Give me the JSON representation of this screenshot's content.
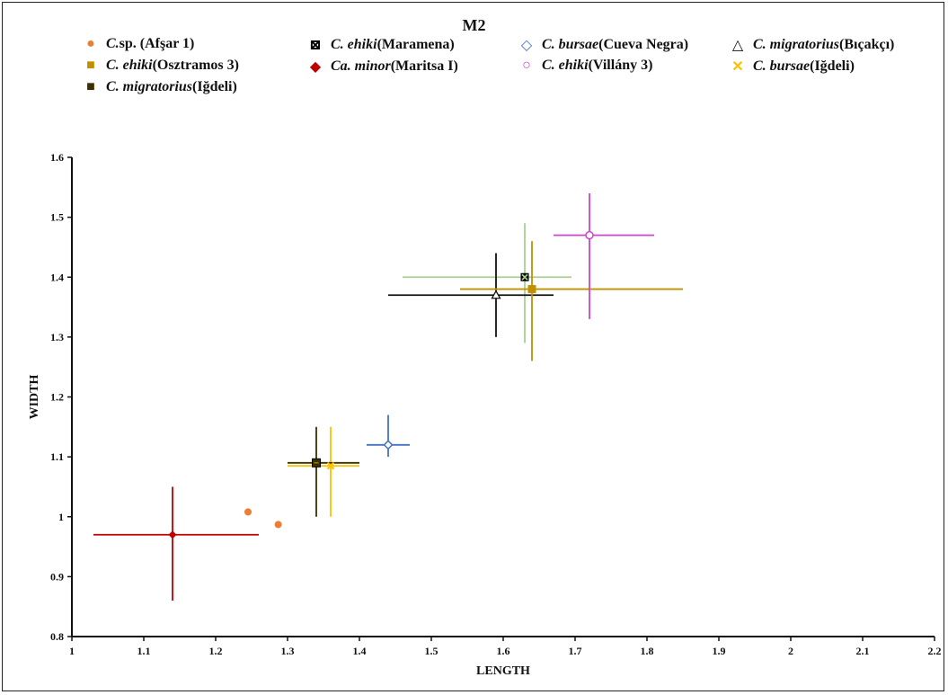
{
  "chart_data": {
    "type": "scatter",
    "title": "M2",
    "xlabel": "LENGTH",
    "ylabel": "WIDTH",
    "xlim": [
      1,
      2.2
    ],
    "ylim": [
      0.8,
      1.6
    ],
    "x_ticks": [
      "1",
      "1.1",
      "1.2",
      "1.3",
      "1.4",
      "1.5",
      "1.6",
      "1.7",
      "1.8",
      "1.9",
      "2",
      "2.1",
      "2.2"
    ],
    "y_ticks": [
      "0.8",
      "0.9",
      "1",
      "1.1",
      "1.2",
      "1.3",
      "1.4",
      "1.5",
      "1.6"
    ],
    "series": [
      {
        "name": "C. sp. (Afşar 1)",
        "genus": "C.",
        "rest": " sp. (Afşar 1)",
        "rest_italic": false,
        "marker": "circle",
        "color": "#ED7D31",
        "points": [
          {
            "x": 1.245,
            "y": 1.008
          },
          {
            "x": 1.287,
            "y": 0.987
          }
        ]
      },
      {
        "name": "C. ehiki (Maramena)",
        "genus": "C. ehiki",
        "rest": " (Maramena)",
        "marker": "square-x",
        "color": "#A9D18E",
        "points": [
          {
            "x": 1.63,
            "y": 1.4,
            "xerr": [
              1.46,
              1.695
            ],
            "yerr": [
              1.29,
              1.49
            ]
          }
        ]
      },
      {
        "name": "C. bursae (Cueva Negra)",
        "genus": "C. bursae",
        "rest": " (Cueva Negra)",
        "marker": "diamond-open",
        "color": "#4472C4",
        "points": [
          {
            "x": 1.44,
            "y": 1.12,
            "xerr": [
              1.41,
              1.47
            ],
            "yerr": [
              1.1,
              1.17
            ]
          }
        ]
      },
      {
        "name": "C. migratorius (Bıçakçı)",
        "genus": "C. migratorius",
        "rest": " (Bıçakçı)",
        "marker": "triangle-open",
        "color": "#111111",
        "points": [
          {
            "x": 1.59,
            "y": 1.37,
            "xerr": [
              1.44,
              1.67
            ],
            "yerr": [
              1.3,
              1.44
            ]
          }
        ]
      },
      {
        "name": "C. ehiki (Osztramos 3)",
        "genus": "C. ehiki",
        "rest": " (Osztramos 3)",
        "marker": "square",
        "color": "#BF9000",
        "points": [
          {
            "x": 1.64,
            "y": 1.38,
            "xerr": [
              1.54,
              1.85
            ],
            "yerr": [
              1.26,
              1.46
            ]
          }
        ]
      },
      {
        "name": "Ca. minor (Maritsa I)",
        "genus": "Ca. minor",
        "rest": " (Maritsa I)",
        "marker": "diamond",
        "color": "#C00000",
        "points": [
          {
            "x": 1.14,
            "y": 0.97,
            "xerr": [
              1.03,
              1.26
            ],
            "yerr": [
              0.86,
              1.05
            ]
          }
        ]
      },
      {
        "name": "C. ehiki (Villány 3)",
        "genus": "C. ehiki",
        "rest": " (Villány 3)",
        "marker": "circle-open",
        "color": "#CC44CC",
        "points": [
          {
            "x": 1.72,
            "y": 1.47,
            "xerr": [
              1.67,
              1.81
            ],
            "yerr": [
              1.33,
              1.54
            ]
          }
        ]
      },
      {
        "name": "C. bursae (Iğdeli)",
        "genus": "C. bursae",
        "rest": " (Iğdeli)",
        "marker": "star",
        "color": "#FFC000",
        "points": [
          {
            "x": 1.36,
            "y": 1.085,
            "xerr": [
              1.3,
              1.4
            ],
            "yerr": [
              1.0,
              1.15
            ]
          }
        ]
      },
      {
        "name": "C. migratorius (Iğdeli)",
        "genus": "C. migratorius",
        "rest": " (Iğdeli)",
        "marker": "square-dark",
        "color": "#3A3000",
        "points": [
          {
            "x": 1.34,
            "y": 1.09,
            "xerr": [
              1.3,
              1.4
            ],
            "yerr": [
              1.0,
              1.15
            ]
          }
        ]
      }
    ],
    "grid": false,
    "legend_position": "top"
  }
}
